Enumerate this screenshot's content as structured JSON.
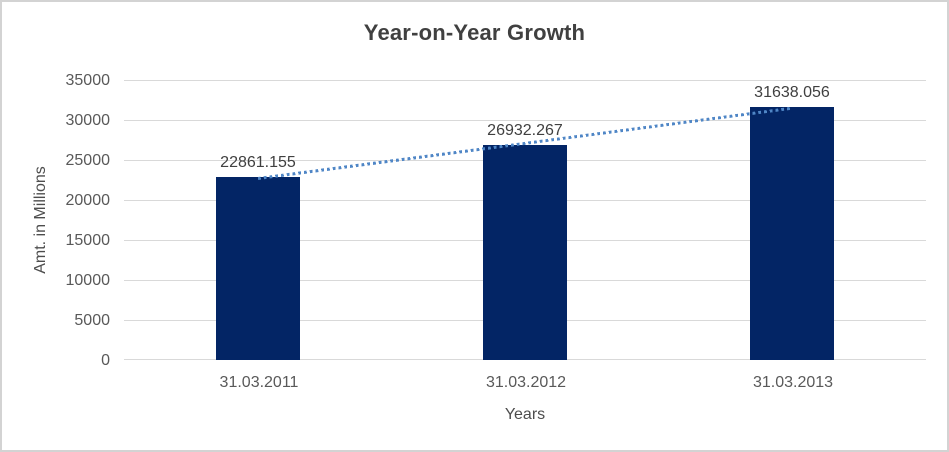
{
  "window": {
    "background_color": "#ffffff",
    "border_color": "#d3d3d3"
  },
  "chart_data": {
    "type": "bar",
    "title": "Year-on-Year Growth",
    "categories": [
      "31.03.2011",
      "31.03.2012",
      "31.03.2013"
    ],
    "values": [
      22861.155,
      26932.267,
      31638.056
    ],
    "data_labels": [
      "22861.155",
      "26932.267",
      "31638.056"
    ],
    "xlabel": "Years",
    "ylabel": "Amt. in Millions",
    "ylim": [
      0,
      35000
    ],
    "ytick_step": 5000,
    "yticks": [
      "35000",
      "30000",
      "25000",
      "20000",
      "15000",
      "10000",
      "5000",
      "0"
    ],
    "grid": true,
    "legend": "none",
    "bar_color": "#032565",
    "gridline_color": "#d9d9d9",
    "trendline": {
      "type": "linear",
      "style": "dotted",
      "color": "#4f86c6"
    },
    "title_color": "#404040",
    "data_label_color": "#404040",
    "axis_text_color": "#595959"
  }
}
